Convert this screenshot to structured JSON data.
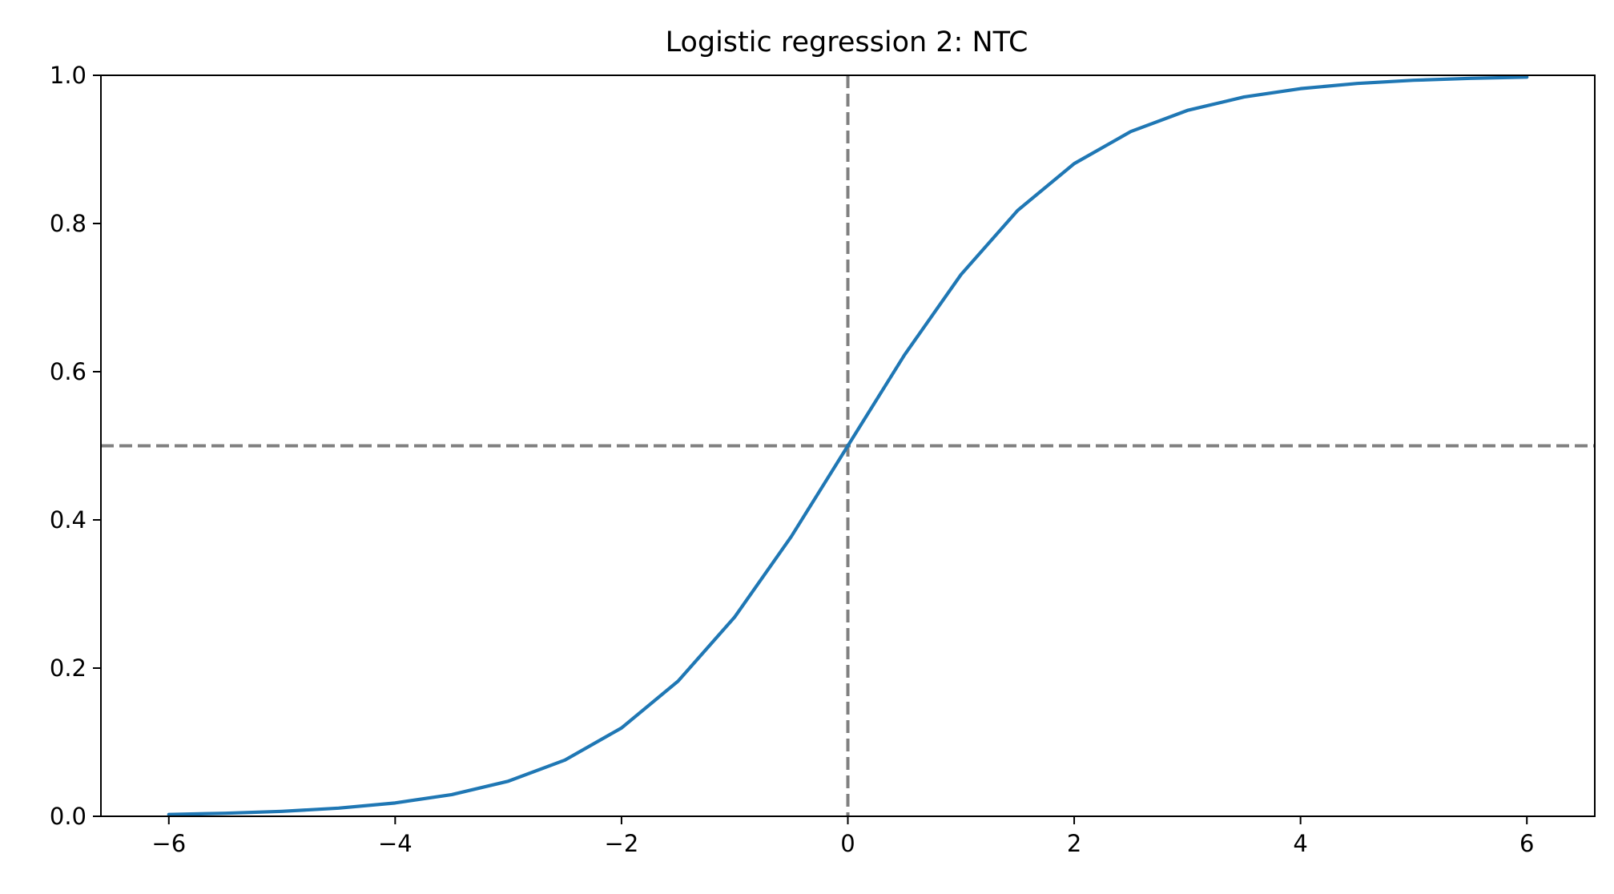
{
  "chart_data": {
    "type": "line",
    "title": "Logistic regression 2: NTC",
    "xlabel": "",
    "ylabel": "",
    "xlim": [
      -6.6,
      6.6
    ],
    "ylim": [
      0.0,
      1.0
    ],
    "x_ticks": [
      -6,
      -4,
      -2,
      0,
      2,
      4,
      6
    ],
    "x_tick_labels": [
      "−6",
      "−4",
      "−2",
      "0",
      "2",
      "4",
      "6"
    ],
    "y_ticks": [
      0.0,
      0.2,
      0.4,
      0.6,
      0.8,
      1.0
    ],
    "y_tick_labels": [
      "0.0",
      "0.2",
      "0.4",
      "0.6",
      "0.8",
      "1.0"
    ],
    "grid": false,
    "series": [
      {
        "color": "#1f77b4",
        "x": [
          -6,
          -5.5,
          -5,
          -4.5,
          -4,
          -3.5,
          -3,
          -2.5,
          -2,
          -1.5,
          -1,
          -0.5,
          0,
          0.5,
          1,
          1.5,
          2,
          2.5,
          3,
          3.5,
          4,
          4.5,
          5,
          5.5,
          6
        ],
        "y": [
          0.0025,
          0.0041,
          0.0067,
          0.011,
          0.018,
          0.0293,
          0.0474,
          0.0759,
          0.1192,
          0.1824,
          0.2689,
          0.3775,
          0.5,
          0.6225,
          0.7311,
          0.8176,
          0.8808,
          0.9241,
          0.9526,
          0.9707,
          0.982,
          0.989,
          0.9933,
          0.9959,
          0.9975
        ]
      }
    ],
    "reference_lines": [
      {
        "orientation": "horizontal",
        "value": 0.5,
        "color": "#808080",
        "style": "dashed"
      },
      {
        "orientation": "vertical",
        "value": 0,
        "color": "#808080",
        "style": "dashed"
      }
    ]
  }
}
